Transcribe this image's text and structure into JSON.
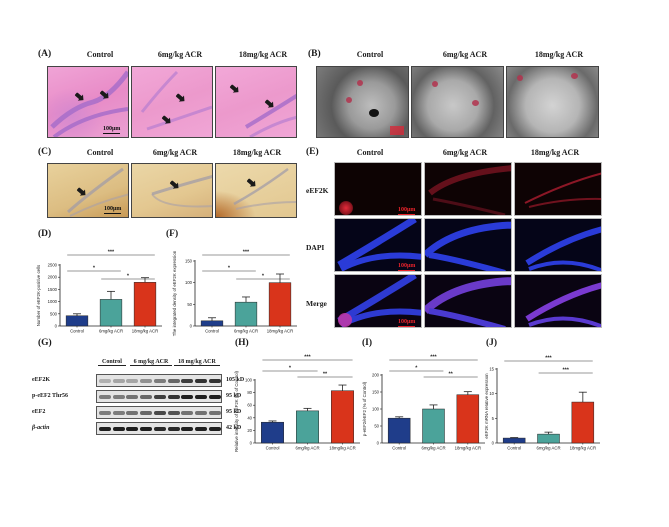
{
  "groups": [
    "Control",
    "6mg/kg ACR",
    "18mg/kg ACR"
  ],
  "panels": {
    "A": {
      "label": "(A)",
      "columns": [
        "Control",
        "6mg/kg ACR",
        "18mg/kg ACR"
      ],
      "scale_bar": "100μm",
      "stain": "HE"
    },
    "B": {
      "label": "(B)",
      "columns": [
        "Control",
        "6mg/kg ACR",
        "18mg/kg ACR"
      ],
      "stain": "TEM"
    },
    "C": {
      "label": "(C)",
      "columns": [
        "Control",
        "6mg/kg ACR",
        "18mg/kg ACR"
      ],
      "scale_bar": "100μm",
      "stain": "IHC"
    },
    "D": {
      "label": "(D)"
    },
    "E": {
      "label": "(E)",
      "columns": [
        "Control",
        "6mg/kg ACR",
        "18mg/kg ACR"
      ],
      "rows": [
        "eEF2K",
        "DAPI",
        "Merge"
      ],
      "scale_bar": "100μm"
    },
    "F": {
      "label": "(F)"
    },
    "G": {
      "label": "(G)",
      "groups": [
        "Control",
        "6 mg/kg ACR",
        "18 mg/kg ACR"
      ],
      "rows": [
        {
          "name": "eEF2K",
          "size": "105 kD"
        },
        {
          "name": "p-eEF2 Thr56",
          "size": "95 kD"
        },
        {
          "name": "eEF2",
          "size": "95 kD"
        },
        {
          "name": "β-actin",
          "size": "42 kD"
        }
      ]
    },
    "H": {
      "label": "(H)"
    },
    "I": {
      "label": "(I)"
    },
    "J": {
      "label": "(J)"
    }
  },
  "colors": {
    "control": "#1f3d8a",
    "low_dose": "#4ba39a",
    "high_dose": "#d9341b",
    "he_pink": "#e58fc4",
    "ihc_tan": "#d9b77a",
    "dapi_blue": "#2a3bd8",
    "eef2k_red": "#c0182a"
  },
  "chart_data": [
    {
      "panel": "D",
      "type": "bar",
      "categories": [
        "Control",
        "6mg/kg ACR",
        "18mg/kg ACR"
      ],
      "values": [
        420,
        1090,
        1790
      ],
      "errors": [
        80,
        330,
        190
      ],
      "ylabel": "Number of eEF2K-positive cells",
      "yticks": [
        0,
        500,
        1000,
        1500,
        2000,
        2500
      ],
      "ylim": [
        0,
        2500
      ],
      "significance": [
        {
          "from": 0,
          "to": 2,
          "label": "***"
        },
        {
          "from": 0,
          "to": 1,
          "label": "*"
        },
        {
          "from": 1,
          "to": 2,
          "label": "*"
        }
      ]
    },
    {
      "panel": "F",
      "type": "bar",
      "categories": [
        "Control",
        "6mg/kg ACR",
        "18mg/kg ACR"
      ],
      "values": [
        12,
        55,
        100
      ],
      "errors": [
        7,
        12,
        20
      ],
      "ylabel": "The integrated density of eEF2K expression",
      "yticks": [
        0,
        50,
        100,
        150
      ],
      "ylim": [
        0,
        150
      ],
      "significance": [
        {
          "from": 0,
          "to": 2,
          "label": "***"
        },
        {
          "from": 0,
          "to": 1,
          "label": "*"
        },
        {
          "from": 1,
          "to": 2,
          "label": "*"
        }
      ]
    },
    {
      "panel": "H",
      "type": "bar",
      "categories": [
        "Control",
        "6mg/kg ACR",
        "18mg/kg ACR"
      ],
      "values": [
        33,
        51,
        83
      ],
      "errors": [
        2,
        4,
        9
      ],
      "ylabel": "Relative intensity of eEF2K (% of Control)",
      "yticks": [
        0,
        20,
        40,
        60,
        80,
        100
      ],
      "ylim": [
        0,
        100
      ],
      "significance": [
        {
          "from": 0,
          "to": 2,
          "label": "***"
        },
        {
          "from": 0,
          "to": 1,
          "label": "*"
        },
        {
          "from": 1,
          "to": 2,
          "label": "**"
        }
      ]
    },
    {
      "panel": "I",
      "type": "bar",
      "categories": [
        "Control",
        "6mg/kg ACR",
        "18mg/kg ACR"
      ],
      "values": [
        73,
        100,
        142
      ],
      "errors": [
        4,
        12,
        9
      ],
      "ylabel": "p-eEF2/eEF2 (% of Control)",
      "yticks": [
        0,
        50,
        100,
        150,
        200
      ],
      "ylim": [
        0,
        200
      ],
      "significance": [
        {
          "from": 0,
          "to": 2,
          "label": "***"
        },
        {
          "from": 0,
          "to": 1,
          "label": "*"
        },
        {
          "from": 1,
          "to": 2,
          "label": "**"
        }
      ]
    },
    {
      "panel": "J",
      "type": "bar",
      "categories": [
        "Control",
        "6mg/kg ACR",
        "18mg/kg ACR"
      ],
      "values": [
        1.0,
        1.8,
        8.3
      ],
      "errors": [
        0.1,
        0.4,
        2.0
      ],
      "ylabel": "eEF2K mRNA relative expression",
      "yticks": [
        0,
        5,
        10,
        15
      ],
      "ylim": [
        0,
        15
      ],
      "significance": [
        {
          "from": 0,
          "to": 2,
          "label": "***"
        },
        {
          "from": 1,
          "to": 2,
          "label": "***"
        }
      ]
    }
  ]
}
